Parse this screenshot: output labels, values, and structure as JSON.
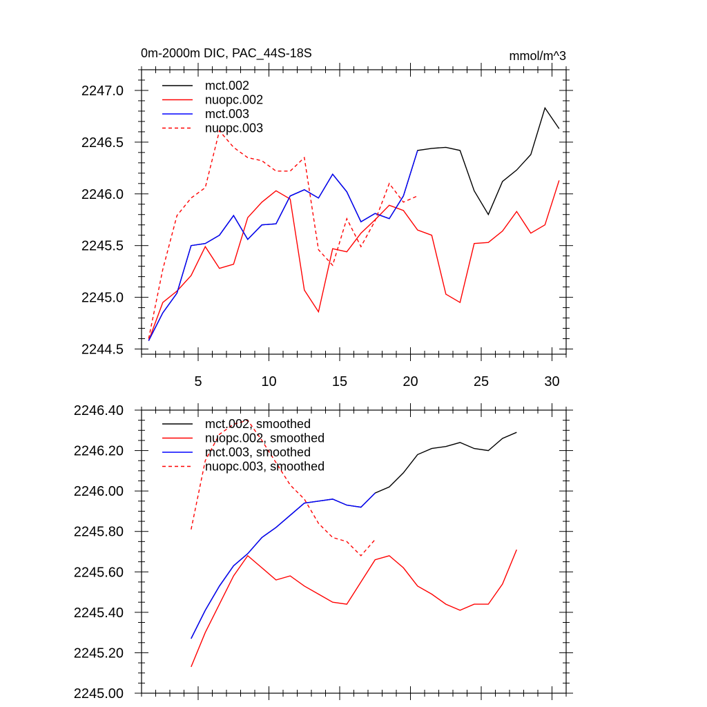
{
  "chart_data": [
    {
      "type": "line",
      "title": "0m-2000m DIC, PAC_44S-18S",
      "units": "mmol/m^3",
      "xlim": [
        1,
        31
      ],
      "ylim": [
        2244.45,
        2247.2
      ],
      "x_ticks": [
        5,
        10,
        15,
        20,
        25,
        30
      ],
      "y_ticks": [
        2244.5,
        2245.0,
        2245.5,
        2246.0,
        2246.5,
        2247.0
      ],
      "y_tick_decimals": 1,
      "legend": "top-left",
      "series": [
        {
          "name": "mct.002",
          "color": "#000000",
          "dash": "solid",
          "x": [
            1.5,
            2.5,
            3.5,
            4.5,
            5.5,
            6.5,
            7.5,
            8.5,
            9.5,
            10.5,
            11.5,
            12.5,
            13.5,
            14.5,
            15.5,
            16.5,
            17.5,
            18.5,
            19.5,
            20.5,
            21.5,
            22.5,
            23.5,
            24.5,
            25.5,
            26.5,
            27.5,
            28.5,
            29.5,
            30.5
          ],
          "y": [
            2244.58,
            2244.85,
            2245.04,
            2245.5,
            2245.52,
            2245.6,
            2245.79,
            2245.56,
            2245.7,
            2245.71,
            2245.98,
            2246.04,
            2245.96,
            2246.19,
            2246.02,
            2245.73,
            2245.81,
            2245.76,
            2245.98,
            2246.42,
            2246.44,
            2246.45,
            2246.42,
            2246.03,
            2245.8,
            2246.12,
            2246.23,
            2246.38,
            2246.83,
            2246.63
          ]
        },
        {
          "name": "nuopc.002",
          "color": "#ff0000",
          "dash": "solid",
          "x": [
            1.5,
            2.5,
            3.5,
            4.5,
            5.5,
            6.5,
            7.5,
            8.5,
            9.5,
            10.5,
            11.5,
            12.5,
            13.5,
            14.5,
            15.5,
            16.5,
            17.5,
            18.5,
            19.5,
            20.5,
            21.5,
            22.5,
            23.5,
            24.5,
            25.5,
            26.5,
            27.5,
            28.5,
            29.5,
            30.5
          ],
          "y": [
            2244.58,
            2244.95,
            2245.06,
            2245.21,
            2245.49,
            2245.28,
            2245.32,
            2245.77,
            2245.92,
            2246.03,
            2245.95,
            2245.07,
            2244.86,
            2245.47,
            2245.44,
            2245.62,
            2245.75,
            2245.89,
            2245.84,
            2245.65,
            2245.6,
            2245.03,
            2244.95,
            2245.52,
            2245.53,
            2245.64,
            2245.83,
            2245.62,
            2245.7,
            2246.13
          ]
        },
        {
          "name": "mct.003",
          "color": "#0000ff",
          "dash": "solid",
          "x": [
            1.5,
            2.5,
            3.5,
            4.5,
            5.5,
            6.5,
            7.5,
            8.5,
            9.5,
            10.5,
            11.5,
            12.5,
            13.5,
            14.5,
            15.5,
            16.5,
            17.5,
            18.5,
            19.5,
            20.5
          ],
          "y": [
            2244.58,
            2244.85,
            2245.04,
            2245.5,
            2245.52,
            2245.6,
            2245.79,
            2245.56,
            2245.7,
            2245.71,
            2245.98,
            2246.04,
            2245.96,
            2246.19,
            2246.02,
            2245.73,
            2245.81,
            2245.76,
            2245.98,
            2246.42
          ]
        },
        {
          "name": "nuopc.003",
          "color": "#ff0000",
          "dash": "dashed",
          "x": [
            1.5,
            2.5,
            3.5,
            4.5,
            5.5,
            6.5,
            7.5,
            8.5,
            9.5,
            10.5,
            11.5,
            12.5,
            13.5,
            14.5,
            15.5,
            16.5,
            17.5,
            18.5,
            19.5,
            20.5
          ],
          "y": [
            2244.6,
            2245.27,
            2245.79,
            2245.96,
            2246.06,
            2246.61,
            2246.45,
            2246.35,
            2246.32,
            2246.22,
            2246.22,
            2246.35,
            2245.46,
            2245.31,
            2245.76,
            2245.49,
            2245.74,
            2246.1,
            2245.92,
            2245.98
          ]
        }
      ]
    },
    {
      "type": "line",
      "title": "",
      "units": "",
      "xlim": [
        1,
        31
      ],
      "ylim": [
        2245.0,
        2246.4
      ],
      "x_ticks": [
        5,
        10,
        15,
        20,
        25,
        30
      ],
      "y_ticks": [
        2245.0,
        2245.2,
        2245.4,
        2245.6,
        2245.8,
        2246.0,
        2246.2,
        2246.4
      ],
      "y_tick_decimals": 2,
      "legend": "top-left",
      "series": [
        {
          "name": "mct.002, smoothed",
          "color": "#000000",
          "dash": "solid",
          "x": [
            4.5,
            5.5,
            6.5,
            7.5,
            8.5,
            9.5,
            10.5,
            11.5,
            12.5,
            13.5,
            14.5,
            15.5,
            16.5,
            17.5,
            18.5,
            19.5,
            20.5,
            21.5,
            22.5,
            23.5,
            24.5,
            25.5,
            26.5,
            27.5
          ],
          "y": [
            2245.27,
            2245.41,
            2245.53,
            2245.63,
            2245.69,
            2245.77,
            2245.82,
            2245.88,
            2245.94,
            2245.95,
            2245.96,
            2245.93,
            2245.92,
            2245.99,
            2246.02,
            2246.09,
            2246.18,
            2246.21,
            2246.22,
            2246.24,
            2246.21,
            2246.2,
            2246.26,
            2246.29
          ]
        },
        {
          "name": "nuopc.002, smoothed",
          "color": "#ff0000",
          "dash": "solid",
          "x": [
            4.5,
            5.5,
            6.5,
            7.5,
            8.5,
            9.5,
            10.5,
            11.5,
            12.5,
            13.5,
            14.5,
            15.5,
            16.5,
            17.5,
            18.5,
            19.5,
            20.5,
            21.5,
            22.5,
            23.5,
            24.5,
            25.5,
            26.5,
            27.5
          ],
          "y": [
            2245.13,
            2245.3,
            2245.44,
            2245.58,
            2245.68,
            2245.62,
            2245.56,
            2245.58,
            2245.53,
            2245.49,
            2245.45,
            2245.44,
            2245.55,
            2245.66,
            2245.68,
            2245.62,
            2245.53,
            2245.49,
            2245.44,
            2245.41,
            2245.44,
            2245.44,
            2245.54,
            2245.71
          ]
        },
        {
          "name": "mct.003, smoothed",
          "color": "#0000ff",
          "dash": "solid",
          "x": [
            4.5,
            5.5,
            6.5,
            7.5,
            8.5,
            9.5,
            10.5,
            11.5,
            12.5,
            13.5,
            14.5,
            15.5,
            16.5,
            17.5
          ],
          "y": [
            2245.27,
            2245.41,
            2245.53,
            2245.63,
            2245.69,
            2245.77,
            2245.82,
            2245.88,
            2245.94,
            2245.95,
            2245.96,
            2245.93,
            2245.92,
            2245.99
          ]
        },
        {
          "name": "nuopc.003, smoothed",
          "color": "#ff0000",
          "dash": "dashed",
          "x": [
            4.5,
            5.5,
            6.5,
            7.5,
            8.5,
            9.5,
            10.5,
            11.5,
            12.5,
            13.5,
            14.5,
            15.5,
            16.5,
            17.5
          ],
          "y": [
            2245.81,
            2246.15,
            2246.28,
            2246.33,
            2246.35,
            2246.25,
            2246.14,
            2246.03,
            2245.96,
            2245.84,
            2245.77,
            2245.75,
            2245.68,
            2245.76
          ]
        }
      ]
    }
  ]
}
